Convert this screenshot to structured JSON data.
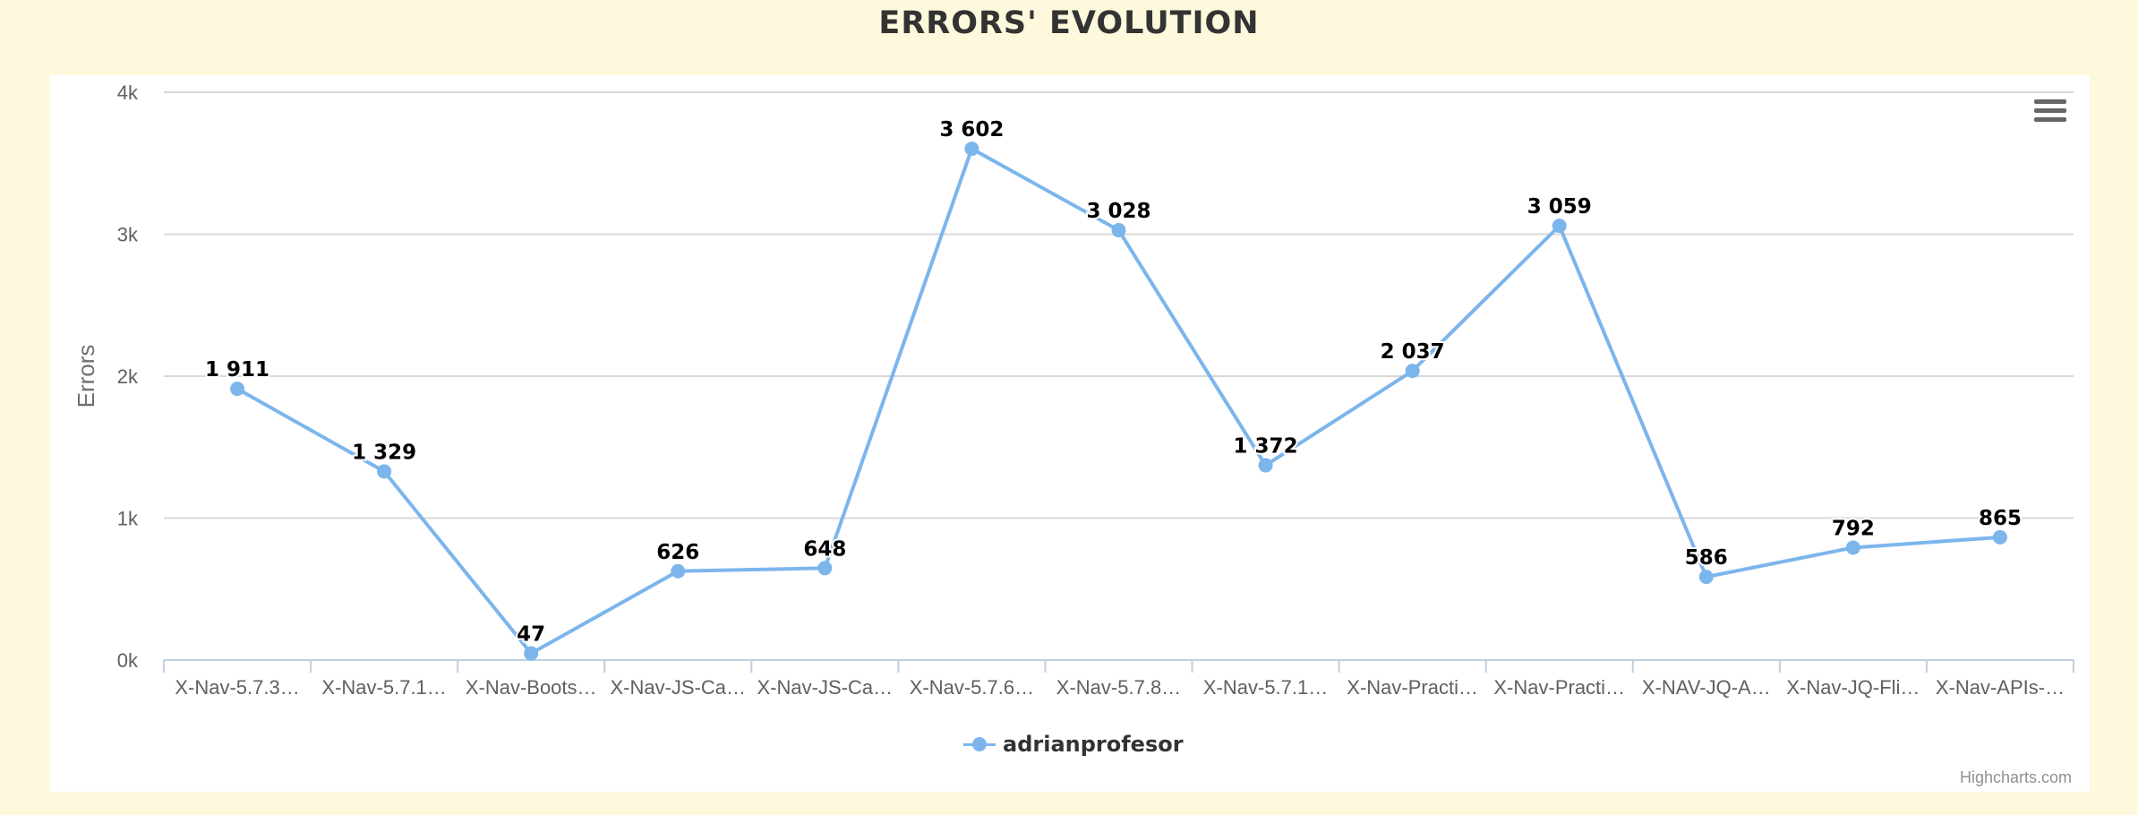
{
  "chart_data": {
    "type": "line",
    "title": "ERRORS' EVOLUTION",
    "ylabel": "Errors",
    "xlabel": "",
    "ylim": [
      0,
      4000
    ],
    "ytick_labels": [
      "0k",
      "1k",
      "2k",
      "3k",
      "4k"
    ],
    "categories": [
      "X-Nav-5.7.3…",
      "X-Nav-5.7.1…",
      "X-Nav-Boots…",
      "X-Nav-JS-Ca…",
      "X-Nav-JS-Ca…",
      "X-Nav-5.7.6…",
      "X-Nav-5.7.8…",
      "X-Nav-5.7.1…",
      "X-Nav-Practi…",
      "X-Nav-Practi…",
      "X-NAV-JQ-A…",
      "X-Nav-JQ-Fli…",
      "X-Nav-APIs-…"
    ],
    "series": [
      {
        "name": "adrianprofesor",
        "values": [
          1911,
          1329,
          47,
          626,
          648,
          3602,
          3028,
          1372,
          2037,
          3059,
          586,
          792,
          865
        ],
        "data_labels": [
          "1 911",
          "1 329",
          "47",
          "626",
          "648",
          "3 602",
          "3 028",
          "1 372",
          "2 037",
          "3 059",
          "586",
          "792",
          "865"
        ]
      }
    ],
    "grid": true,
    "legend_position": "bottom-center",
    "series_color": "#7cb5ec"
  },
  "credits": "Highcharts.com",
  "menu": {
    "icon": "hamburger-menu-icon"
  }
}
